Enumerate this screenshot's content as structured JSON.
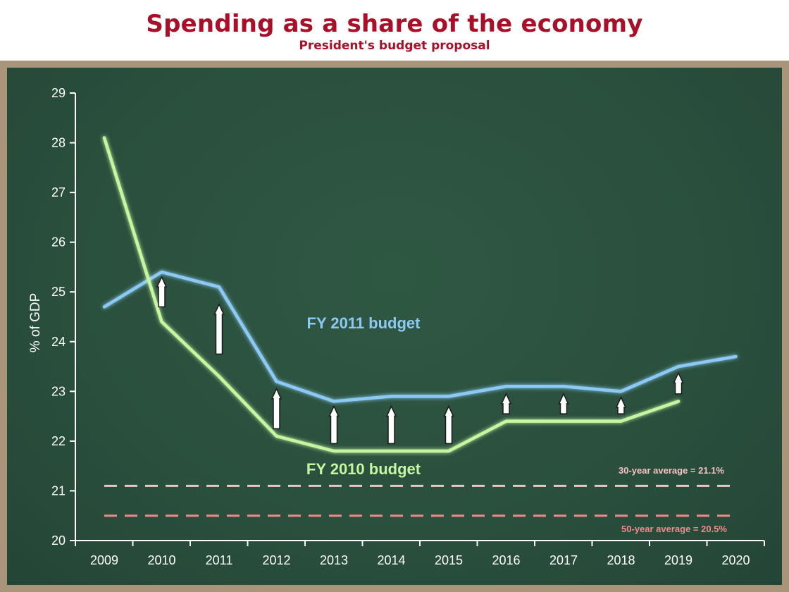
{
  "header": {
    "title": "Spending as a share of the economy",
    "subtitle": "President's budget proposal"
  },
  "colors": {
    "title": "#a8102a",
    "board": "#2a4f3d",
    "frame": "#a8957a",
    "fy2011": "#8ccaf5",
    "fy2010": "#c6f7a0",
    "avg30": "#f6c3c3",
    "avg50": "#f08a8a",
    "arrow": "#ffffff"
  },
  "chart_data": {
    "type": "line",
    "x": [
      2009,
      2010,
      2011,
      2012,
      2013,
      2014,
      2015,
      2016,
      2017,
      2018,
      2019,
      2020
    ],
    "xticklabels": [
      "2009",
      "2010",
      "2011",
      "2012",
      "2013",
      "2014",
      "2015",
      "2016",
      "2017",
      "2018",
      "2019",
      "2020"
    ],
    "ylabel": "% of GDP",
    "ylim": [
      20,
      29
    ],
    "yticks": [
      20,
      21,
      22,
      23,
      24,
      25,
      26,
      27,
      28,
      29
    ],
    "grid": false,
    "series": [
      {
        "name": "FY 2011 budget",
        "x": [
          2009,
          2010,
          2011,
          2012,
          2013,
          2014,
          2015,
          2016,
          2017,
          2018,
          2019,
          2020
        ],
        "values": [
          24.7,
          25.4,
          25.1,
          23.2,
          22.8,
          22.9,
          22.9,
          23.1,
          23.1,
          23.0,
          23.5,
          23.7
        ],
        "color": "#8ccaf5"
      },
      {
        "name": "FY 2010 budget",
        "x": [
          2009,
          2010,
          2011,
          2012,
          2013,
          2014,
          2015,
          2016,
          2017,
          2018,
          2019
        ],
        "values": [
          28.1,
          24.4,
          23.3,
          22.1,
          21.8,
          21.8,
          21.8,
          22.4,
          22.4,
          22.4,
          22.8
        ],
        "color": "#c6f7a0"
      }
    ],
    "reference_lines": [
      {
        "label": "30-year average = 21.1%",
        "value": 21.1,
        "color": "#f6c3c3"
      },
      {
        "label": "50-year average = 20.5%",
        "value": 20.5,
        "color": "#f08a8a"
      }
    ],
    "annotations": {
      "arrows": [
        {
          "x": 2010,
          "from": 24.7,
          "to": 25.3
        },
        {
          "x": 2011,
          "from": 23.75,
          "to": 24.75
        },
        {
          "x": 2012,
          "from": 22.25,
          "to": 23.05
        },
        {
          "x": 2013,
          "from": 21.95,
          "to": 22.7
        },
        {
          "x": 2014,
          "from": 21.95,
          "to": 22.7
        },
        {
          "x": 2015,
          "from": 21.95,
          "to": 22.7
        },
        {
          "x": 2016,
          "from": 22.55,
          "to": 22.95
        },
        {
          "x": 2017,
          "from": 22.55,
          "to": 22.95
        },
        {
          "x": 2018,
          "from": 22.55,
          "to": 22.88
        },
        {
          "x": 2019,
          "from": 22.95,
          "to": 23.37
        }
      ]
    }
  }
}
